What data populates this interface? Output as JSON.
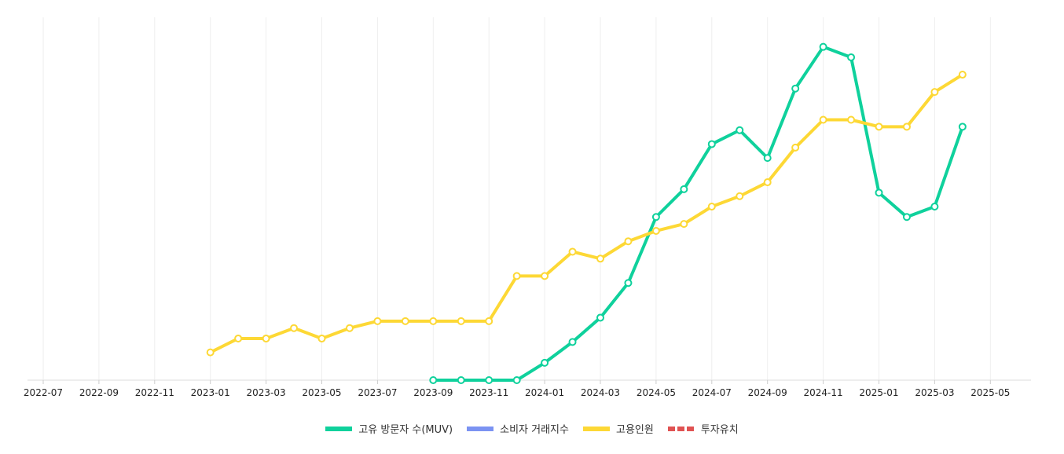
{
  "chart_data": {
    "type": "line",
    "title": "",
    "xlabel": "",
    "ylabel": "",
    "x_ticks": [
      "2022-07",
      "2022-09",
      "2022-11",
      "2023-01",
      "2023-03",
      "2023-05",
      "2023-07",
      "2023-09",
      "2023-11",
      "2024-01",
      "2024-03",
      "2024-05",
      "2024-07",
      "2024-09",
      "2024-11",
      "2025-01",
      "2025-03",
      "2025-05"
    ],
    "x_range": [
      "2022-06-15",
      "2025-06-30"
    ],
    "y_range": [
      0,
      100
    ],
    "y_axis_visible": false,
    "grid": "vertical",
    "legend_position": "bottom",
    "series": [
      {
        "name": "고유 방문자 수(MUV)",
        "color": "#0fd19c",
        "style": "solid",
        "points": [
          {
            "x": "2023-09",
            "y": 0
          },
          {
            "x": "2023-10",
            "y": 0
          },
          {
            "x": "2023-11",
            "y": 0
          },
          {
            "x": "2023-12",
            "y": 0
          },
          {
            "x": "2024-01",
            "y": 5
          },
          {
            "x": "2024-02",
            "y": 11
          },
          {
            "x": "2024-03",
            "y": 18
          },
          {
            "x": "2024-04",
            "y": 28
          },
          {
            "x": "2024-05",
            "y": 47
          },
          {
            "x": "2024-06",
            "y": 55
          },
          {
            "x": "2024-07",
            "y": 68
          },
          {
            "x": "2024-08",
            "y": 72
          },
          {
            "x": "2024-09",
            "y": 64
          },
          {
            "x": "2024-10",
            "y": 84
          },
          {
            "x": "2024-11",
            "y": 96
          },
          {
            "x": "2024-12",
            "y": 93
          },
          {
            "x": "2025-01",
            "y": 54
          },
          {
            "x": "2025-02",
            "y": 47
          },
          {
            "x": "2025-03",
            "y": 50
          },
          {
            "x": "2025-04",
            "y": 73
          }
        ]
      },
      {
        "name": "소비자 거래지수",
        "color": "#7b93f2",
        "style": "solid",
        "points": []
      },
      {
        "name": "고용인원",
        "color": "#fdd835",
        "style": "solid",
        "points": [
          {
            "x": "2023-01",
            "y": 8
          },
          {
            "x": "2023-02",
            "y": 12
          },
          {
            "x": "2023-03",
            "y": 12
          },
          {
            "x": "2023-04",
            "y": 15
          },
          {
            "x": "2023-05",
            "y": 12
          },
          {
            "x": "2023-06",
            "y": 15
          },
          {
            "x": "2023-07",
            "y": 17
          },
          {
            "x": "2023-08",
            "y": 17
          },
          {
            "x": "2023-09",
            "y": 17
          },
          {
            "x": "2023-10",
            "y": 17
          },
          {
            "x": "2023-11",
            "y": 17
          },
          {
            "x": "2023-12",
            "y": 30
          },
          {
            "x": "2024-01",
            "y": 30
          },
          {
            "x": "2024-02",
            "y": 37
          },
          {
            "x": "2024-03",
            "y": 35
          },
          {
            "x": "2024-04",
            "y": 40
          },
          {
            "x": "2024-05",
            "y": 43
          },
          {
            "x": "2024-06",
            "y": 45
          },
          {
            "x": "2024-07",
            "y": 50
          },
          {
            "x": "2024-08",
            "y": 53
          },
          {
            "x": "2024-09",
            "y": 57
          },
          {
            "x": "2024-10",
            "y": 67
          },
          {
            "x": "2024-11",
            "y": 75
          },
          {
            "x": "2024-12",
            "y": 75
          },
          {
            "x": "2025-01",
            "y": 73
          },
          {
            "x": "2025-02",
            "y": 73
          },
          {
            "x": "2025-03",
            "y": 83
          },
          {
            "x": "2025-04",
            "y": 88
          }
        ]
      },
      {
        "name": "투자유치",
        "color": "#e05252",
        "style": "dashed",
        "points": []
      }
    ]
  }
}
